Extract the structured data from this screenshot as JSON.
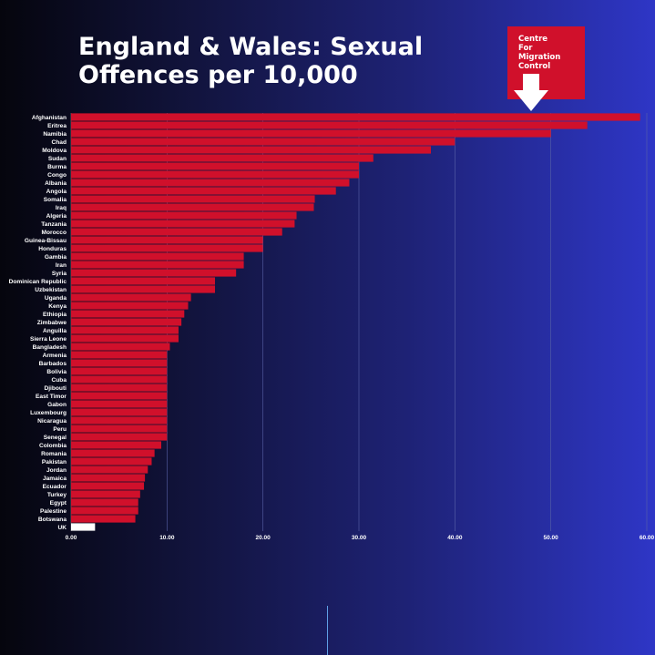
{
  "title": "England & Wales: Sexual Offences per 10,000",
  "logo": {
    "text": "Centre\nFor\nMigration\nControl"
  },
  "colors": {
    "bar": "#d0102b",
    "uk_bar": "#ffffff",
    "grid": "#5a63a8"
  },
  "chart_data": {
    "type": "bar",
    "orientation": "horizontal",
    "title": "England & Wales: Sexual Offences per 10,000",
    "xlabel": "",
    "ylabel": "",
    "xlim": [
      0,
      60
    ],
    "xticks": [
      "0.00",
      "10.00",
      "20.00",
      "30.00",
      "40.00",
      "50.00",
      "60.00"
    ],
    "grid": true,
    "categories": [
      "Afghanistan",
      "Eritrea",
      "Namibia",
      "Chad",
      "Moldova",
      "Sudan",
      "Burma",
      "Congo",
      "Albania",
      "Angola",
      "Somalia",
      "Iraq",
      "Algeria",
      "Tanzania",
      "Morocco",
      "Guinea-Bissau",
      "Honduras",
      "Gambia",
      "Iran",
      "Syria",
      "Dominican Republic",
      "Uzbekistan",
      "Uganda",
      "Kenya",
      "Ethiopia",
      "Zimbabwe",
      "Anguilla",
      "Sierra Leone",
      "Bangladesh",
      "Armenia",
      "Barbados",
      "Bolivia",
      "Cuba",
      "Djibouti",
      "East Timor",
      "Gabon",
      "Luxembourg",
      "Nicaragua",
      "Peru",
      "Senegal",
      "Colombia",
      "Romania",
      "Pakistan",
      "Jordan",
      "Jamaica",
      "Ecuador",
      "Turkey",
      "Egypt",
      "Palestine",
      "Botswana",
      "UK"
    ],
    "values": [
      59.3,
      53.8,
      50.0,
      40.0,
      37.5,
      31.5,
      30.0,
      30.0,
      29.0,
      27.6,
      25.4,
      25.3,
      23.5,
      23.3,
      22.0,
      20.0,
      20.0,
      18.0,
      18.0,
      17.2,
      15.0,
      15.0,
      12.5,
      12.2,
      11.8,
      11.5,
      11.2,
      11.2,
      10.3,
      10.0,
      10.0,
      10.0,
      10.0,
      10.0,
      10.0,
      10.0,
      10.0,
      10.0,
      10.0,
      10.0,
      9.4,
      8.7,
      8.4,
      8.0,
      7.7,
      7.6,
      7.2,
      7.0,
      7.0,
      6.7,
      2.5
    ]
  }
}
